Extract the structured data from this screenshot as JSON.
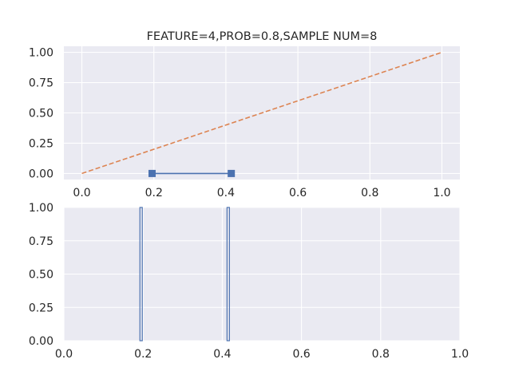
{
  "chart_data": [
    {
      "type": "line",
      "title": "FEATURE=4,PROB=0.8,SAMPLE NUM=8",
      "xlabel": "",
      "ylabel": "",
      "xlim": [
        -0.05,
        1.05
      ],
      "ylim": [
        -0.05,
        1.05
      ],
      "xticks": [
        "0.0",
        "0.2",
        "0.4",
        "0.6",
        "0.8",
        "1.0"
      ],
      "yticks": [
        "0.00",
        "0.25",
        "0.50",
        "0.75",
        "1.00"
      ],
      "grid": true,
      "series": [
        {
          "style": "solid line with square markers",
          "color": "#4c72b0",
          "points": [
            [
              0.195,
              0.0
            ],
            [
              0.415,
              0.0
            ]
          ]
        },
        {
          "style": "dashed",
          "color": "#dd8452",
          "points": [
            [
              0.0,
              0.0
            ],
            [
              1.0,
              1.0
            ]
          ]
        }
      ]
    },
    {
      "type": "bar",
      "title": "",
      "xlabel": "",
      "ylabel": "",
      "xlim": [
        0.0,
        1.0
      ],
      "ylim": [
        0.0,
        1.0
      ],
      "xticks": [
        "0.0",
        "0.2",
        "0.4",
        "0.6",
        "0.8",
        "1.0"
      ],
      "yticks": [
        "0.00",
        "0.25",
        "0.50",
        "0.75",
        "1.00"
      ],
      "grid": true,
      "bar_style": "outlined histogram bars",
      "color": "#4c72b0",
      "bars": [
        {
          "x": 0.195,
          "height": 1.0
        },
        {
          "x": 0.415,
          "height": 1.0
        }
      ]
    }
  ]
}
